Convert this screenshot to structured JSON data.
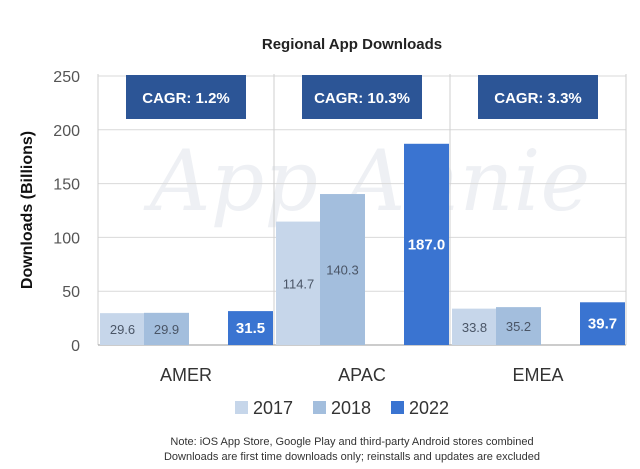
{
  "chart_data": {
    "type": "bar",
    "title": "Regional App Downloads",
    "ylabel": "Downloads (Billions)",
    "xlabel": "",
    "ylim": [
      0,
      250
    ],
    "yticks": [
      0,
      50,
      100,
      150,
      200,
      250
    ],
    "categories": [
      "AMER",
      "APAC",
      "EMEA"
    ],
    "series": [
      {
        "name": "2017",
        "values": [
          29.6,
          114.7,
          33.8
        ],
        "color": "#c6d6ea"
      },
      {
        "name": "2018",
        "values": [
          29.9,
          140.3,
          35.2
        ],
        "color": "#a3bedd"
      },
      {
        "name": "2022",
        "values": [
          31.5,
          187.0,
          39.7
        ],
        "color": "#3a74d1"
      }
    ],
    "value_labels": {
      "2017": [
        "29.6",
        "114.7",
        "33.8"
      ],
      "2018": [
        "29.9",
        "140.3",
        "35.2"
      ],
      "2022": [
        "31.5",
        "187.0",
        "39.7"
      ]
    },
    "annotations": [
      "CAGR: 1.2%",
      "CAGR: 10.3%",
      "CAGR: 3.3%"
    ],
    "annotation_color": "#2c5596",
    "watermark": "App Annie",
    "legend_position": "bottom-center",
    "notes": [
      "Note: iOS App Store, Google Play and third-party Android stores combined",
      "Downloads are first time downloads only; reinstalls and updates are excluded"
    ]
  }
}
